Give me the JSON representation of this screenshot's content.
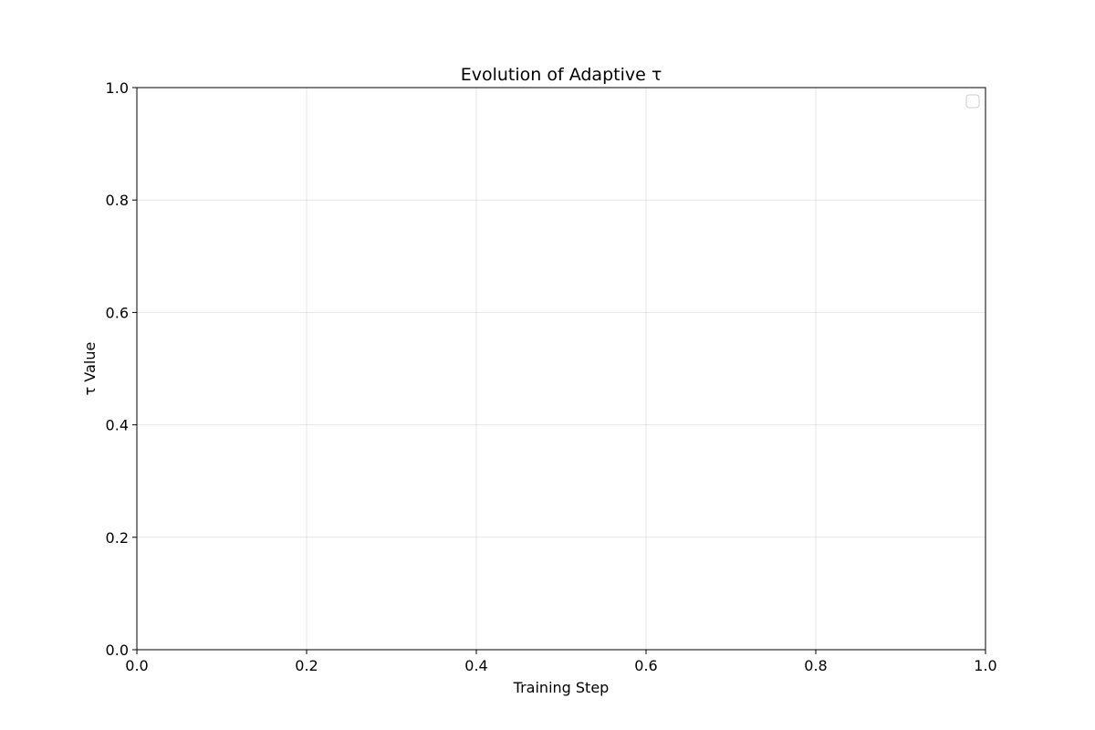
{
  "chart_data": {
    "type": "line",
    "title": "Evolution of Adaptive τ",
    "xlabel": "Training Step",
    "ylabel": "τ Value",
    "xlim": [
      0.0,
      1.0
    ],
    "ylim": [
      0.0,
      1.0
    ],
    "x_ticks": [
      "0.0",
      "0.2",
      "0.4",
      "0.6",
      "0.8",
      "1.0"
    ],
    "y_ticks": [
      "0.0",
      "0.2",
      "0.4",
      "0.6",
      "0.8",
      "1.0"
    ],
    "grid": true,
    "legend": "upper right",
    "legend_entries": [],
    "series": []
  }
}
